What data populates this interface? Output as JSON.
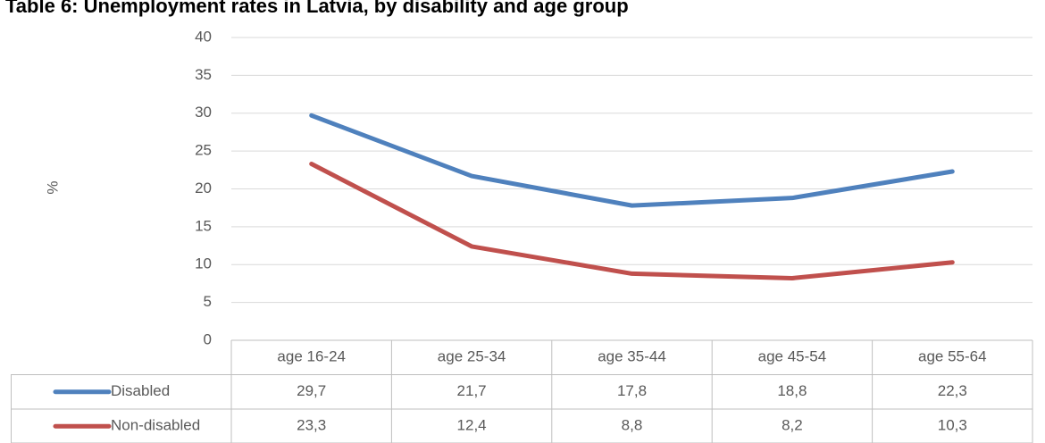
{
  "chart_data": {
    "type": "line",
    "title": "Table 6: Unemployment rates in Latvia, by disability and age group",
    "y_label": "%",
    "categories": [
      "age 16-24",
      "age 25-34",
      "age 35-44",
      "age 45-54",
      "age 55-64"
    ],
    "series": [
      {
        "name": "Disabled",
        "color": "#4f81bd",
        "values": [
          29.7,
          21.7,
          17.8,
          18.8,
          22.3
        ],
        "value_labels": [
          "29,7",
          "21,7",
          "17,8",
          "18,8",
          "22,3"
        ]
      },
      {
        "name": "Non-disabled",
        "color": "#c0504d",
        "values": [
          23.3,
          12.4,
          8.8,
          8.2,
          10.3
        ],
        "value_labels": [
          "23,3",
          "12,4",
          "8,8",
          "8,2",
          "10,3"
        ]
      }
    ],
    "ylim": [
      0,
      40
    ],
    "yticks": [
      0,
      5,
      10,
      15,
      20,
      25,
      30,
      35,
      40
    ],
    "grid": true
  }
}
